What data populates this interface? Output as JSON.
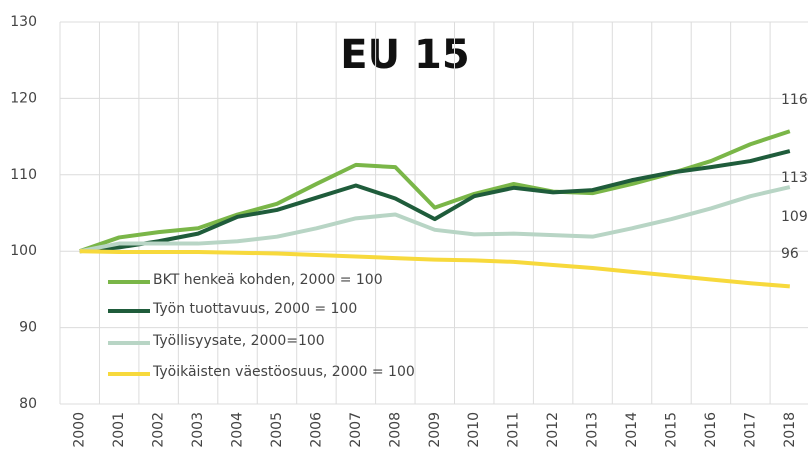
{
  "chart_data": {
    "type": "line",
    "title": "EU 15",
    "categories": [
      "2000",
      "2001",
      "2002",
      "2003",
      "2004",
      "2005",
      "2006",
      "2007",
      "2008",
      "2009",
      "2010",
      "2011",
      "2012",
      "2013",
      "2014",
      "2015",
      "2016",
      "2017",
      "2018"
    ],
    "series": [
      {
        "name": "BKT henkeä kohden, 2000 = 100",
        "color": "#7ab648",
        "values": [
          100,
          101.8,
          102.5,
          103,
          104.8,
          106.2,
          108.8,
          111.3,
          111,
          105.7,
          107.5,
          108.8,
          107.8,
          107.6,
          108.8,
          110.2,
          111.8,
          114,
          115.7
        ]
      },
      {
        "name": "Työn tuottavuus, 2000 = 100",
        "color": "#1f5c3b",
        "values": [
          100,
          100.5,
          101.3,
          102.3,
          104.5,
          105.4,
          107,
          108.6,
          106.9,
          104.2,
          107.2,
          108.3,
          107.7,
          108,
          109.3,
          110.3,
          111,
          111.8,
          113.1
        ]
      },
      {
        "name": "Työllisyysate, 2000=100",
        "color": "#b8d5c5",
        "values": [
          100,
          101,
          101,
          101,
          101.3,
          101.9,
          103,
          104.3,
          104.8,
          102.8,
          102.2,
          102.3,
          102.1,
          101.9,
          103,
          104.2,
          105.6,
          107.2,
          108.4
        ]
      },
      {
        "name": "Työikäisten väestöosuus, 2000 = 100",
        "color": "#f7d93c",
        "values": [
          100,
          99.9,
          99.9,
          99.9,
          99.8,
          99.7,
          99.5,
          99.3,
          99.1,
          98.9,
          98.8,
          98.6,
          98.2,
          97.8,
          97.3,
          96.8,
          96.3,
          95.8,
          95.4
        ]
      }
    ],
    "annotations": [
      "116",
      "113",
      "109",
      "96"
    ],
    "ylim": [
      80,
      130
    ],
    "yticks": [
      80,
      90,
      100,
      110,
      120,
      130
    ],
    "grid": true,
    "legend": "left"
  }
}
